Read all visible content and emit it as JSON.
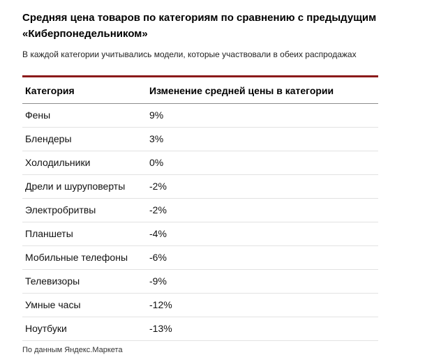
{
  "page": {
    "title": "Средняя цена товаров по категориям по сравнению с предыдущим «Киберпонедельником»",
    "subtitle": "В каждой категории учитывались модели, которые участвовали в обеих распродажах",
    "footer": "По данным Яндекс.Маркета"
  },
  "table": {
    "accent_color": "#8b1a1a",
    "headers": [
      "Категория",
      "Изменение средней цены в категории"
    ],
    "rows": [
      [
        "Фены",
        "9%"
      ],
      [
        "Блендеры",
        "3%"
      ],
      [
        "Холодильники",
        "0%"
      ],
      [
        "Дрели и шуруповерты",
        "-2%"
      ],
      [
        "Электробритвы",
        "-2%"
      ],
      [
        "Планшеты",
        "-4%"
      ],
      [
        "Мобильные телефоны",
        "-6%"
      ],
      [
        "Телевизоры",
        "-9%"
      ],
      [
        "Умные часы",
        "-12%"
      ],
      [
        "Ноутбуки",
        "-13%"
      ]
    ]
  },
  "chart_data": {
    "type": "table",
    "title": "Средняя цена товаров по категориям по сравнению с предыдущим «Киберпонедельником»",
    "subtitle": "В каждой категории учитывались модели, которые участвовали в обеих распродажах",
    "columns": [
      "Категория",
      "Изменение средней цены в категории"
    ],
    "categories": [
      "Фены",
      "Блендеры",
      "Холодильники",
      "Дрели и шуруповерты",
      "Электробритвы",
      "Планшеты",
      "Мобильные телефоны",
      "Телевизоры",
      "Умные часы",
      "Ноутбуки"
    ],
    "values_percent": [
      9,
      3,
      0,
      -2,
      -2,
      -4,
      -6,
      -9,
      -12,
      -13
    ],
    "source": "По данным Яндекс.Маркета",
    "legend_position": "none",
    "grid": "rows-only"
  }
}
